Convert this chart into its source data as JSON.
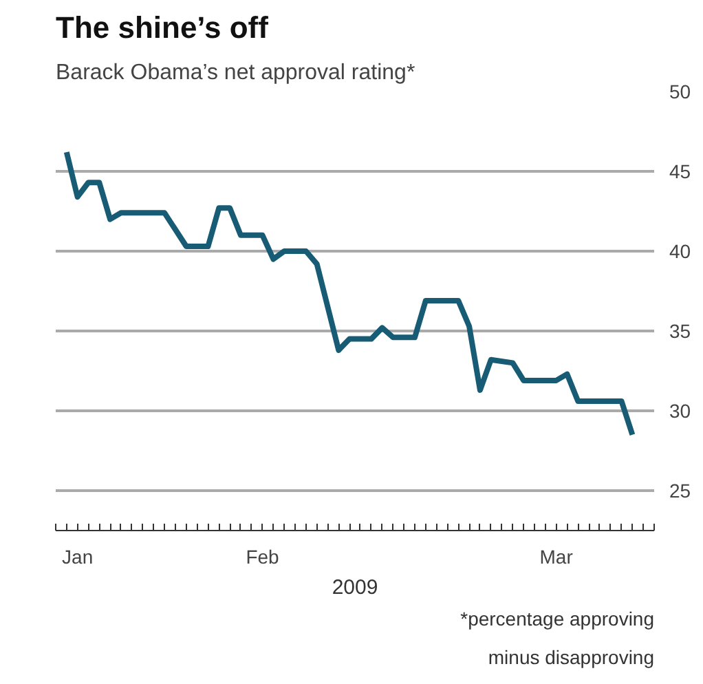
{
  "chart_data": {
    "type": "line",
    "title": "The shine’s off",
    "subtitle": "Barack Obama’s net approval rating*",
    "xlabel": "2009",
    "annotations": [
      "*percentage approving\nminus disapproving"
    ],
    "x": [
      "2009-01-15",
      "2009-01-16",
      "2009-01-17",
      "2009-01-18",
      "2009-01-19",
      "2009-01-20",
      "2009-01-24",
      "2009-01-26",
      "2009-01-28",
      "2009-01-29",
      "2009-01-30",
      "2009-01-31",
      "2009-02-02",
      "2009-02-03",
      "2009-02-04",
      "2009-02-06",
      "2009-02-07",
      "2009-02-09",
      "2009-02-10",
      "2009-02-12",
      "2009-02-13",
      "2009-02-14",
      "2009-02-16",
      "2009-02-17",
      "2009-02-20",
      "2009-02-21",
      "2009-02-22",
      "2009-02-23",
      "2009-02-25",
      "2009-02-26",
      "2009-03-01",
      "2009-03-02",
      "2009-03-03",
      "2009-03-07",
      "2009-03-08"
    ],
    "series": [
      {
        "color": "#175c74",
        "values": [
          46.2,
          43.4,
          44.3,
          44.3,
          42.0,
          42.4,
          42.4,
          40.3,
          40.3,
          42.7,
          42.7,
          41.0,
          41.0,
          39.5,
          40.0,
          40.0,
          39.2,
          33.8,
          34.5,
          34.5,
          35.2,
          34.6,
          34.6,
          36.9,
          36.9,
          35.3,
          31.3,
          33.2,
          33.0,
          31.9,
          31.9,
          32.3,
          30.6,
          30.6,
          28.5
        ]
      }
    ],
    "xlim": [
      "2009-01-14",
      "2009-03-10"
    ],
    "xticks": [
      {
        "value": "2009-01-16",
        "label": "Jan"
      },
      {
        "value": "2009-02-02",
        "label": "Feb"
      },
      {
        "value": "2009-03-01",
        "label": "Mar"
      }
    ],
    "ylim": [
      22.5,
      50
    ],
    "yticks": [
      25,
      30,
      35,
      40,
      45,
      50
    ],
    "grid": "y",
    "line_style": "solid"
  }
}
